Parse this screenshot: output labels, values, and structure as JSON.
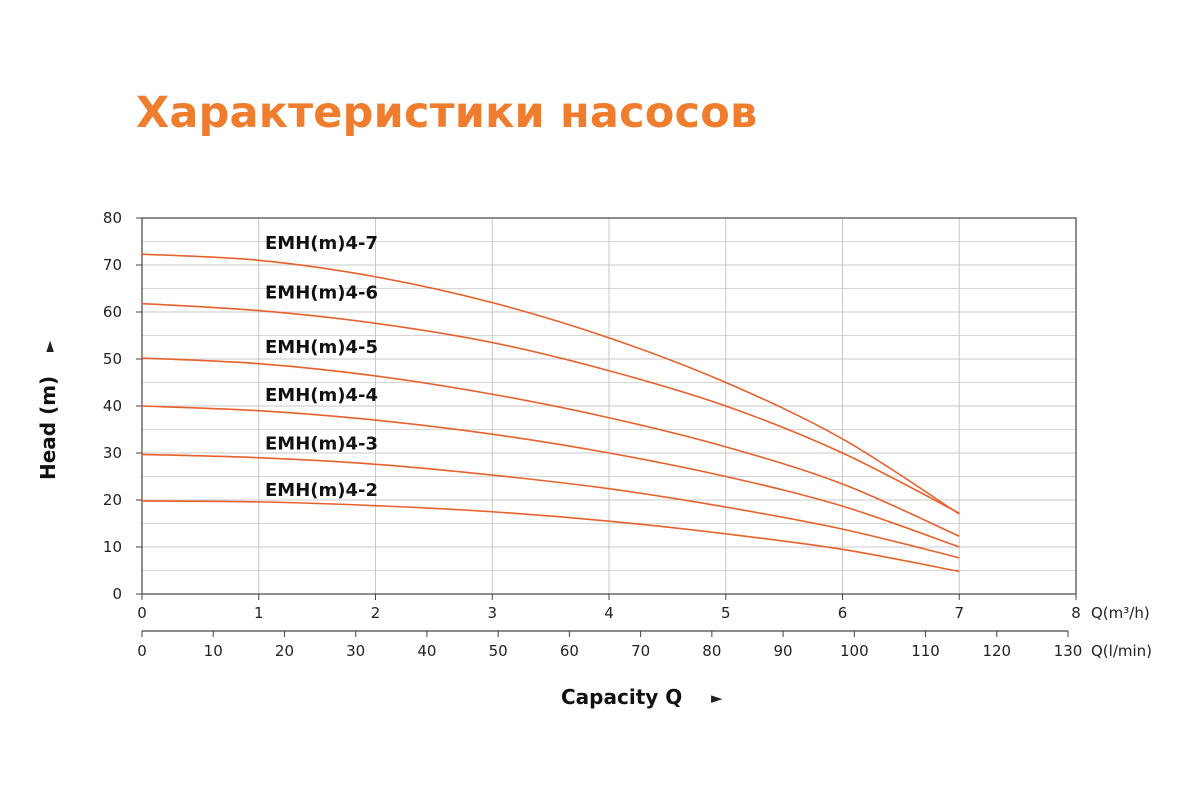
{
  "chart_data": {
    "type": "line",
    "title": "Характеристики насосов",
    "xlabel": "Capacity Q",
    "ylabel": "Head (m)",
    "arrow_glyph": "►",
    "ylim": [
      0,
      80
    ],
    "yticks": [
      "0",
      "10",
      "20",
      "30",
      "40",
      "50",
      "60",
      "70",
      "80"
    ],
    "xlim": [
      0,
      8
    ],
    "xticks": [
      "0",
      "1",
      "2",
      "3",
      "4",
      "5",
      "6",
      "7",
      "8"
    ],
    "x_unit": "Q(m³/h)",
    "x2lim": [
      0,
      130
    ],
    "x2ticks": [
      "0",
      "10",
      "20",
      "30",
      "40",
      "50",
      "60",
      "70",
      "80",
      "90",
      "100",
      "110",
      "120",
      "130"
    ],
    "x2_unit": "Q(l/min)",
    "grid": true,
    "colors": {
      "line": "#e8612c",
      "title": "#f07d2e",
      "grid": "#c8c8c8"
    },
    "series": [
      {
        "name": "EMH(m)4-7",
        "x": [
          0,
          1,
          2,
          3,
          4,
          5,
          6,
          7
        ],
        "y": [
          72.3,
          71.0,
          67.5,
          62.0,
          54.5,
          45.0,
          33.0,
          17.0
        ]
      },
      {
        "name": "EMH(m)4-6",
        "x": [
          0,
          1,
          2,
          3,
          4,
          5,
          6,
          7
        ],
        "y": [
          61.8,
          60.3,
          57.6,
          53.5,
          47.5,
          40.0,
          30.0,
          17.2
        ]
      },
      {
        "name": "EMH(m)4-5",
        "x": [
          0,
          1,
          2,
          3,
          4,
          5,
          6,
          7
        ],
        "y": [
          50.2,
          49.0,
          46.4,
          42.5,
          37.5,
          31.3,
          23.4,
          12.3
        ]
      },
      {
        "name": "EMH(m)4-4",
        "x": [
          0,
          1,
          2,
          3,
          4,
          5,
          6,
          7
        ],
        "y": [
          40.0,
          39.0,
          37.0,
          34.0,
          30.0,
          25.0,
          18.7,
          10.0
        ]
      },
      {
        "name": "EMH(m)4-3",
        "x": [
          0,
          1,
          2,
          3,
          4,
          5,
          6,
          7
        ],
        "y": [
          29.7,
          29.0,
          27.6,
          25.3,
          22.4,
          18.5,
          13.8,
          7.7
        ]
      },
      {
        "name": "EMH(m)4-2",
        "x": [
          0,
          1,
          2,
          3,
          4,
          5,
          6,
          7
        ],
        "y": [
          19.8,
          19.6,
          18.8,
          17.5,
          15.5,
          12.8,
          9.5,
          4.8
        ]
      }
    ]
  }
}
